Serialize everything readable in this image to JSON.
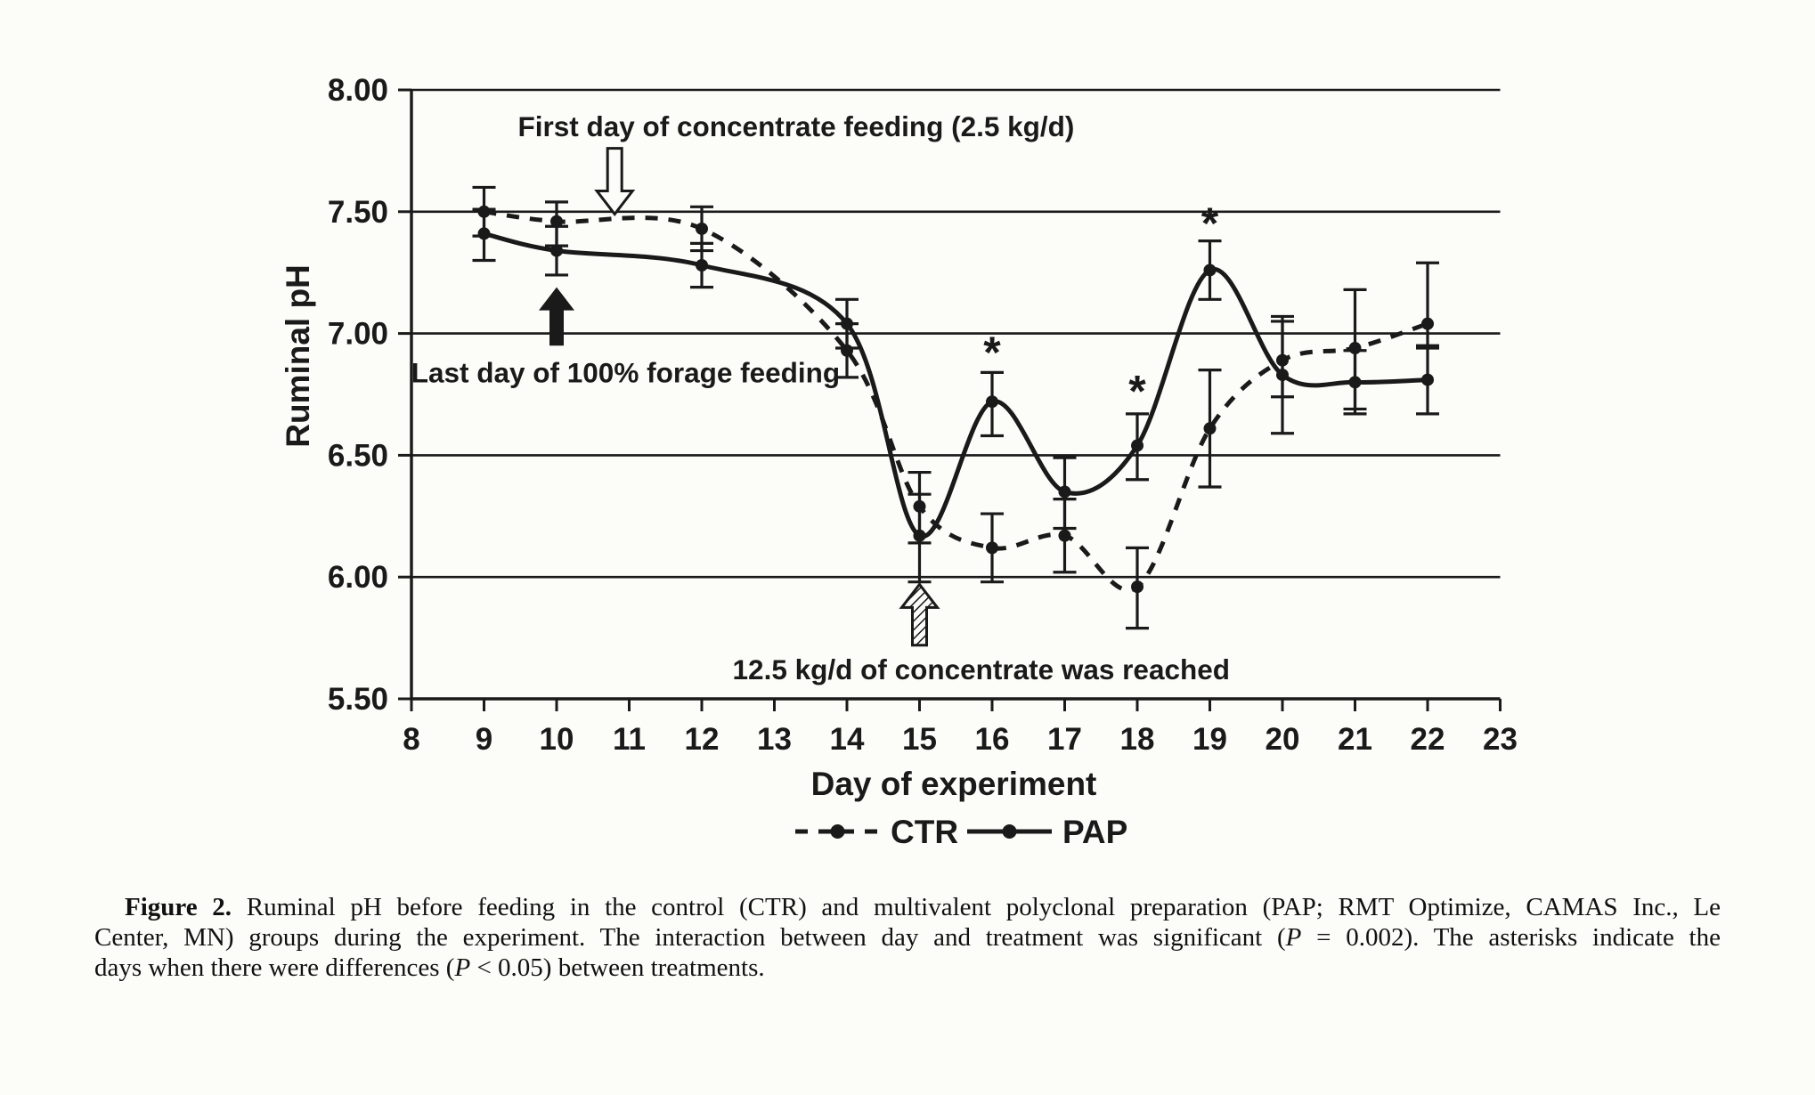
{
  "colors": {
    "ink": "#1a1a1a",
    "paper": "#fcfcf9"
  },
  "chart_data": {
    "type": "line",
    "title": "",
    "xlabel": "Day of experiment",
    "ylabel": "Ruminal pH",
    "xlim": [
      8,
      23
    ],
    "ylim": [
      5.5,
      8.0
    ],
    "grid": "horizontal",
    "gridline_values": [
      6.0,
      6.5,
      7.0,
      7.5,
      8.0
    ],
    "x_ticks": [
      8,
      9,
      10,
      11,
      12,
      13,
      14,
      15,
      16,
      17,
      18,
      19,
      20,
      21,
      22,
      23
    ],
    "y_ticks": [
      {
        "value": 8.0,
        "label": "8.00"
      },
      {
        "value": 7.5,
        "label": "7.50"
      },
      {
        "value": 7.0,
        "label": "7.00"
      },
      {
        "value": 6.5,
        "label": "6.50"
      },
      {
        "value": 6.0,
        "label": "6.00"
      },
      {
        "value": 5.5,
        "label": "5.50"
      }
    ],
    "x": [
      9,
      10,
      12,
      14,
      15,
      16,
      17,
      18,
      19,
      20,
      21,
      22
    ],
    "series": [
      {
        "name": "CTR",
        "style": "dashed",
        "values": [
          7.5,
          7.46,
          7.43,
          6.93,
          6.29,
          6.12,
          6.17,
          5.96,
          6.61,
          6.89,
          6.94,
          7.04
        ],
        "err_up": [
          0.1,
          0.08,
          0.09,
          0.11,
          0.14,
          0.14,
          0.15,
          0.16,
          0.24,
          0.16,
          0.24,
          0.25
        ],
        "err_dn": [
          0.1,
          0.1,
          0.09,
          0.11,
          0.15,
          0.14,
          0.15,
          0.17,
          0.24,
          0.15,
          0.25,
          0.1
        ]
      },
      {
        "name": "PAP",
        "style": "solid",
        "values": [
          7.41,
          7.34,
          7.28,
          7.04,
          6.17,
          6.72,
          6.35,
          6.54,
          7.26,
          6.83,
          6.8,
          6.81
        ],
        "err_up": [
          0.1,
          0.1,
          0.09,
          0.1,
          0.17,
          0.12,
          0.14,
          0.13,
          0.12,
          0.24,
          0.13,
          0.14
        ],
        "err_dn": [
          0.11,
          0.1,
          0.09,
          0.1,
          0.19,
          0.14,
          0.15,
          0.14,
          0.12,
          0.24,
          0.13,
          0.14
        ]
      }
    ],
    "asterisks": [
      {
        "day": 16,
        "ph": 6.86
      },
      {
        "day": 18,
        "ph": 6.7
      },
      {
        "day": 19,
        "ph": 7.39
      }
    ],
    "annotations": [
      {
        "id": "first-day-concentrate",
        "text": "First day of concentrate feeding (2.5 kg/d)",
        "day": 13.3,
        "ph": 7.81
      },
      {
        "id": "last-day-forage",
        "text": "Last day of 100% forage feeding",
        "day": 10.95,
        "ph": 6.8
      },
      {
        "id": "concentrate-reached",
        "text": "12.5 kg/d of concentrate was reached",
        "day": 15.85,
        "ph": 5.58
      }
    ],
    "arrows": [
      {
        "id": "arrow-first-day",
        "style": "open",
        "day": 10.8,
        "ph_tail": 7.76,
        "ph_tip": 7.49
      },
      {
        "id": "arrow-last-day",
        "style": "solid",
        "day": 10.0,
        "ph_tail": 6.95,
        "ph_tip": 7.19
      },
      {
        "id": "arrow-reached",
        "style": "hatched",
        "day": 15.0,
        "ph_tail": 5.72,
        "ph_tip": 5.97
      }
    ],
    "legend": {
      "position": "bottom-center",
      "items": [
        {
          "label": "CTR",
          "style": "dashed"
        },
        {
          "label": "PAP",
          "style": "solid"
        }
      ]
    }
  },
  "caption": {
    "lines": [
      {
        "justify": true,
        "first": true,
        "segments": [
          {
            "t": "Figure 2.",
            "b": true
          },
          {
            "t": " Ruminal pH before feeding in the control (CTR) and multivalent polyclonal preparation (PAP; RMT Optimize, CAMAS Inc., Le"
          }
        ]
      },
      {
        "justify": true,
        "segments": [
          {
            "t": "Center, MN) groups during the experiment. The interaction between day and treatment was significant ("
          },
          {
            "t": "P",
            "i": true
          },
          {
            "t": " = 0.002). The asterisks indicate the"
          }
        ]
      },
      {
        "justify": false,
        "segments": [
          {
            "t": "days when there were differences ("
          },
          {
            "t": "P",
            "i": true
          },
          {
            "t": " < 0.05) between treatments."
          }
        ]
      }
    ]
  }
}
